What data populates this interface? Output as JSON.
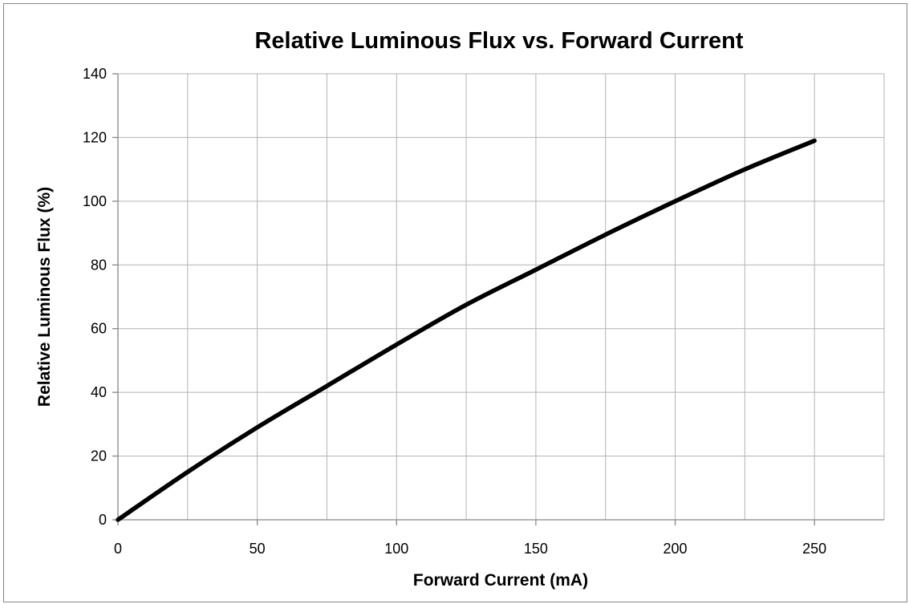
{
  "chart_data": {
    "type": "line",
    "title": "Relative Luminous Flux vs. Forward Current",
    "xlabel": "Forward Current (mA)",
    "ylabel": "Relative Luminous Flux (%)",
    "xlim": [
      0,
      275
    ],
    "ylim": [
      0,
      140
    ],
    "xticks": [
      0,
      50,
      100,
      150,
      200,
      250
    ],
    "yticks": [
      0,
      20,
      40,
      60,
      80,
      100,
      120,
      140
    ],
    "xgrid_step": 25,
    "ygrid_step": 20,
    "grid": true,
    "legend": "none",
    "series_color": "#000000",
    "series": [
      {
        "x": [
          0,
          25,
          50,
          75,
          100,
          125,
          150,
          175,
          200,
          225,
          250
        ],
        "values": [
          0,
          15,
          29,
          42,
          55,
          67.5,
          78.5,
          89.5,
          100,
          110,
          119
        ]
      }
    ]
  }
}
